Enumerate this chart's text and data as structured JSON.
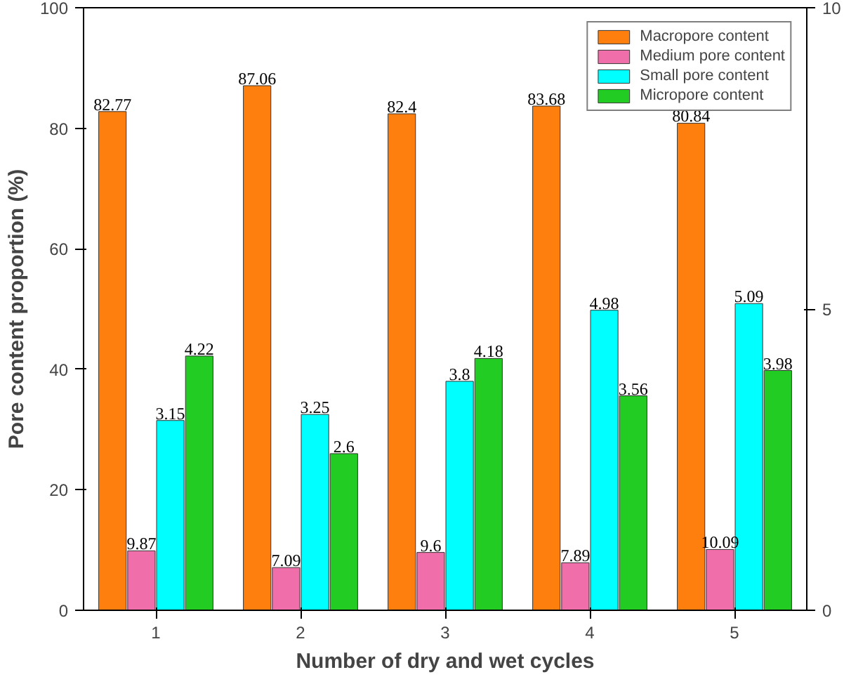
{
  "chart_data": {
    "type": "bar",
    "xlabel": "Number of dry and wet cycles",
    "ylabel": "Pore content proportion (%)",
    "categories": [
      "1",
      "2",
      "3",
      "4",
      "5"
    ],
    "series": [
      {
        "name": "Macropore content",
        "color": "#ff7f0e",
        "values": [
          82.77,
          87.06,
          82.4,
          83.68,
          80.84
        ]
      },
      {
        "name": "Medium pore content",
        "color": "#f06ea9",
        "values": [
          9.87,
          7.09,
          9.6,
          7.89,
          10.09
        ]
      },
      {
        "name": "Small pore content",
        "color": "#00ffff",
        "values": [
          3.15,
          3.25,
          3.8,
          4.98,
          5.09
        ],
        "axis": "y2"
      },
      {
        "name": "Micropore content",
        "color": "#22cc22",
        "values": [
          4.22,
          2.6,
          4.18,
          3.56,
          3.98
        ],
        "axis": "y2"
      }
    ],
    "ylim": [
      0,
      100
    ],
    "yticks": [
      0,
      20,
      40,
      60,
      80,
      100
    ],
    "y2lim": [
      0,
      10
    ],
    "y2ticks": [
      0,
      5,
      10
    ],
    "data_labels": true,
    "legend": "top right",
    "grid": false
  }
}
